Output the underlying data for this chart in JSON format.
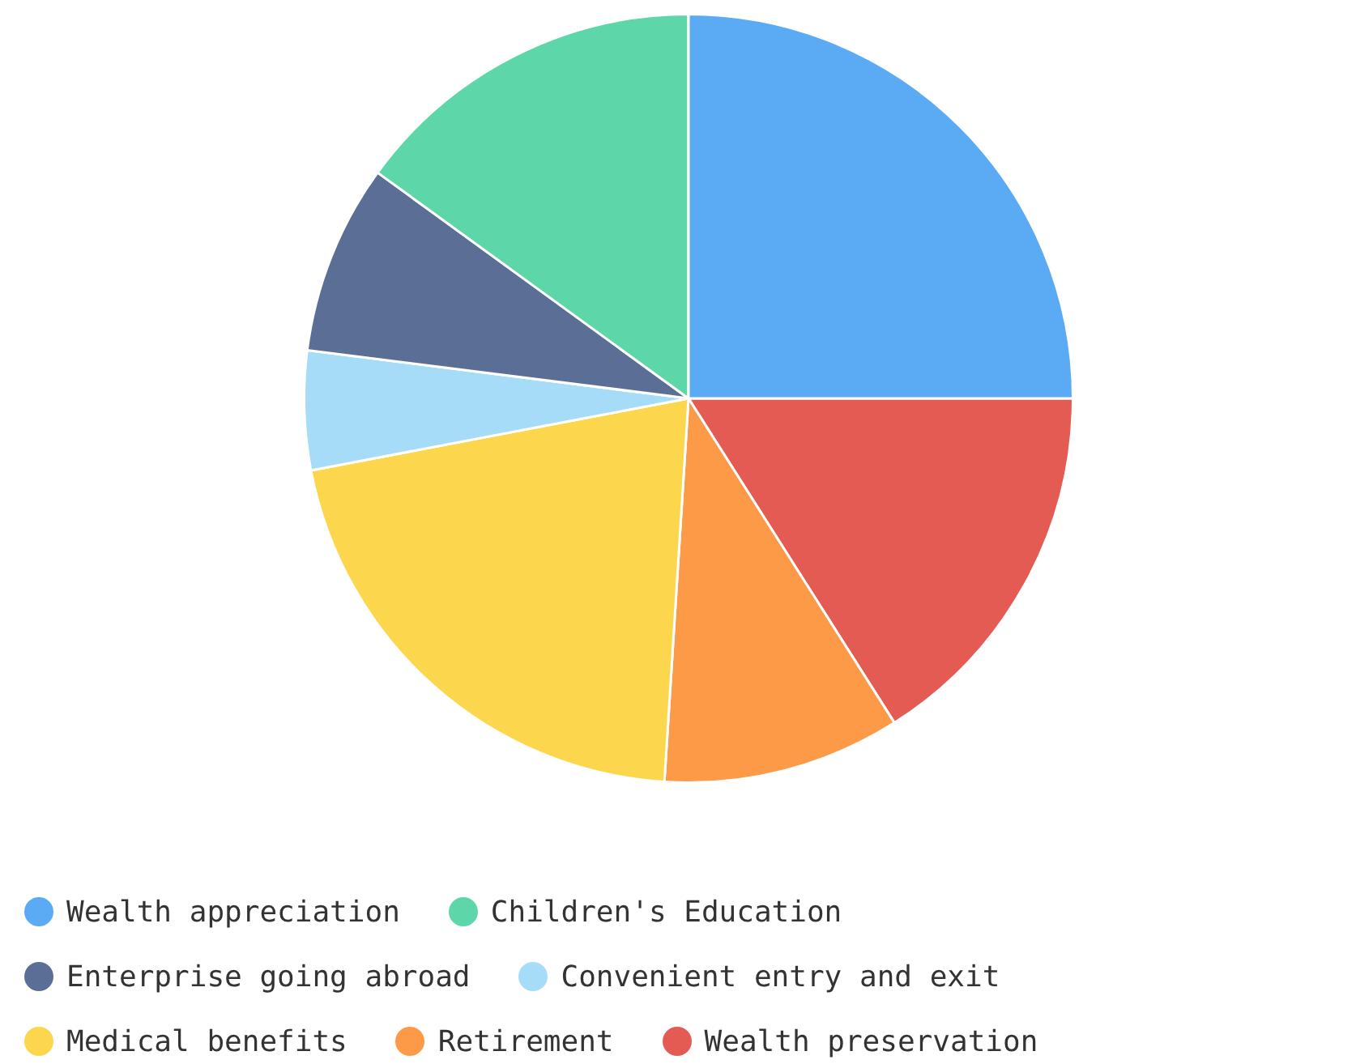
{
  "chart_data": {
    "type": "pie",
    "categories": [
      "Wealth appreciation",
      "Children's Education",
      "Enterprise going abroad",
      "Convenient entry and exit",
      "Medical benefits",
      "Retirement",
      "Wealth preservation"
    ],
    "values": [
      25,
      15,
      8,
      5,
      21,
      10,
      16
    ],
    "colors": [
      "#5aabf3",
      "#5dd6aa",
      "#5a6e96",
      "#a6dcf8",
      "#fcd64c",
      "#fd9a48",
      "#e35b53"
    ],
    "legend": "bottom"
  }
}
